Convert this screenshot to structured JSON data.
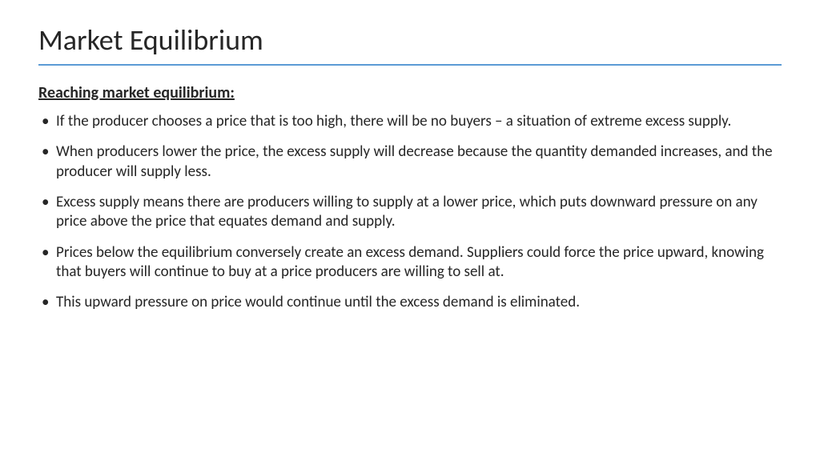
{
  "slide": {
    "title": "Market Equilibrium",
    "subheading": "Reaching market equilibrium:",
    "bullets": [
      "If the producer chooses a price that is too high, there will be no buyers – a situation of extreme excess supply.",
      "When producers lower the price, the excess supply will decrease because the quantity demanded increases, and the producer will supply less.",
      "Excess supply means there are producers willing to supply at a lower price, which puts downward pressure on any price above the price that equates demand and supply.",
      "Prices below the equilibrium conversely create an excess demand. Suppliers could force the price upward, knowing that buyers will continue to buy at a price producers are willing to sell at.",
      "This upward pressure on price would continue until the excess demand is eliminated."
    ],
    "accent_color": "#5b9bd5",
    "text_color": "#262626",
    "background_color": "#ffffff"
  }
}
